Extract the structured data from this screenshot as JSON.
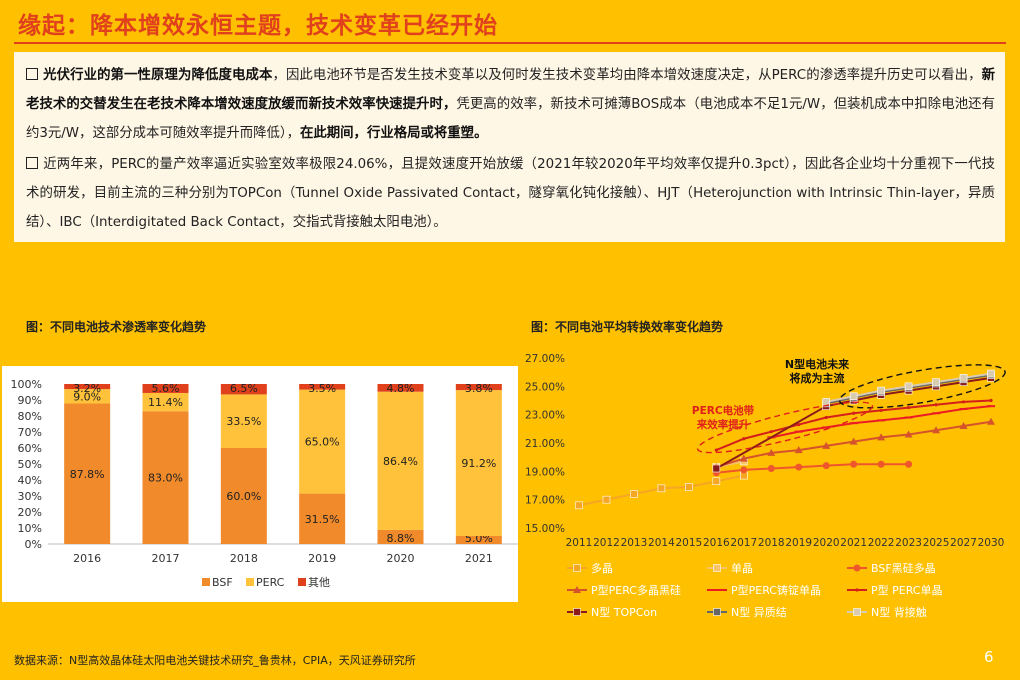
{
  "header": {
    "title": "缘起：降本增效永恒主题，技术变革已经开始"
  },
  "paragraphs": {
    "p1": [
      {
        "t": "光伏行业的第一性原理为降低度电成本",
        "b": true
      },
      {
        "t": "，因此电池环节是否发生技术变革以及何时发生技术变革均由降本增效速度决定，从PERC的渗透率提升历史可以看出，",
        "b": false
      },
      {
        "t": "新老技术的交替发生在老技术降本增效速度放缓而新技术效率快速提升时，",
        "b": true
      },
      {
        "t": "凭更高的效率，新技术可摊薄BOS成本（电池成本不足1元/W，但装机成本中扣除电池还有约3元/W，这部分成本可随效率提升而降低），",
        "b": false
      },
      {
        "t": "在此期间，行业格局或将重塑。",
        "b": true
      }
    ],
    "p2": [
      {
        "t": "近两年来，PERC的量产效率逼近实验室效率极限24.06%，且提效速度开始放缓（2021年较2020年平均效率仅提升0.3pct），因此各企业均十分重视下一代技术的研发，目前主流的三种分别为TOPCon（Tunnel Oxide Passivated Contact，隧穿氧化钝化接触）、HJT（Heterojunction with Intrinsic Thin-layer，异质结）、IBC（Interdigitated Back Contact，交指式背接触太阳电池）。",
        "b": false
      }
    ]
  },
  "chart_labels": {
    "left": "图：不同电池技术渗透率变化趋势",
    "right": "图：不同电池平均转换效率变化趋势"
  },
  "chart_data": [
    {
      "type": "bar",
      "stacked": true,
      "categories": [
        "2016",
        "2017",
        "2018",
        "2019",
        "2020",
        "2021"
      ],
      "series": [
        {
          "name": "BSF",
          "color": "#F08A2B",
          "values": [
            87.8,
            83.0,
            60.0,
            31.5,
            8.8,
            5.0
          ]
        },
        {
          "name": "PERC",
          "color": "#FFC23A",
          "values": [
            9.0,
            11.4,
            33.5,
            65.0,
            86.4,
            91.2
          ]
        },
        {
          "name": "其他",
          "color": "#E0401C",
          "values": [
            3.2,
            5.6,
            6.5,
            3.5,
            4.8,
            3.8
          ]
        }
      ],
      "ylim": [
        0,
        100
      ],
      "yticks": [
        "0%",
        "10%",
        "20%",
        "30%",
        "40%",
        "50%",
        "60%",
        "70%",
        "80%",
        "90%",
        "100%"
      ],
      "value_labels": [
        [
          "87.8%",
          "83.0%",
          "60.0%",
          "31.5%",
          "8.8%",
          "5.0%"
        ],
        [
          "9.0%",
          "11.4%",
          "33.5%",
          "65.0%",
          "86.4%",
          "91.2%"
        ],
        [
          "3.2%",
          "5.6%",
          "6.5%",
          "3.5%",
          "4.8%",
          "3.8%"
        ]
      ],
      "legend_position": "bottom"
    },
    {
      "type": "line",
      "x": [
        "2011",
        "2012",
        "2013",
        "2014",
        "2015",
        "2016",
        "2017",
        "2018",
        "2019",
        "2020",
        "2021",
        "2022",
        "2023",
        "2025",
        "2027",
        "2030"
      ],
      "ylim": [
        15,
        27
      ],
      "yticks": [
        "15.00%",
        "17.00%",
        "19.00%",
        "21.00%",
        "23.00%",
        "25.00%",
        "27.00%"
      ],
      "series": [
        {
          "name": "多晶",
          "color": "#F5A623",
          "marker": "square",
          "values": [
            16.6,
            17.0,
            17.4,
            17.8,
            17.9,
            18.3,
            18.7,
            null,
            null,
            null,
            null,
            null,
            null,
            null,
            null,
            null
          ]
        },
        {
          "name": "单晶",
          "color": "#F7C46B",
          "marker": "square",
          "values": [
            null,
            null,
            null,
            null,
            null,
            19.3,
            19.7,
            null,
            null,
            null,
            null,
            null,
            null,
            null,
            null,
            null
          ]
        },
        {
          "name": "BSF黑硅多晶",
          "color": "#F0562B",
          "marker": "circle",
          "values": [
            null,
            null,
            null,
            null,
            null,
            18.9,
            19.1,
            19.2,
            19.3,
            19.4,
            19.5,
            19.5,
            19.5,
            null,
            null,
            null
          ]
        },
        {
          "name": "P型PERC多晶黑硅",
          "color": "#D5522A",
          "marker": "triangle",
          "values": [
            null,
            null,
            null,
            null,
            null,
            19.3,
            19.9,
            20.3,
            20.5,
            20.8,
            21.1,
            21.4,
            21.6,
            21.9,
            22.2,
            22.5
          ]
        },
        {
          "name": "P型PERC铸锭单晶",
          "color": "#EB1C24",
          "marker": "dash",
          "values": [
            null,
            null,
            null,
            null,
            null,
            null,
            null,
            21.4,
            21.8,
            22.1,
            22.4,
            22.6,
            22.8,
            23.1,
            23.4,
            23.6
          ]
        },
        {
          "name": "P型 PERC单晶",
          "color": "#D4201B",
          "marker": "dot",
          "values": [
            null,
            null,
            null,
            null,
            null,
            20.5,
            21.3,
            21.8,
            22.3,
            22.8,
            23.1,
            23.3,
            23.5,
            23.7,
            23.9,
            24.0
          ]
        },
        {
          "name": "N型 TOPCon",
          "color": "#8B1A1A",
          "marker": "square",
          "values": [
            null,
            null,
            null,
            null,
            null,
            19.2,
            null,
            null,
            null,
            23.6,
            24.0,
            24.4,
            24.7,
            25.0,
            25.3,
            25.6
          ]
        },
        {
          "name": "N型 异质结",
          "color": "#666666",
          "marker": "square",
          "values": [
            null,
            null,
            null,
            null,
            null,
            null,
            null,
            null,
            null,
            23.8,
            24.2,
            24.6,
            24.9,
            25.2,
            25.5,
            25.8
          ]
        },
        {
          "name": "N型 背接触",
          "color": "#D9CBB0",
          "marker": "square",
          "values": [
            null,
            null,
            null,
            null,
            null,
            null,
            null,
            null,
            null,
            23.9,
            24.3,
            24.7,
            25.0,
            25.3,
            25.6,
            25.9
          ]
        }
      ],
      "annotations": [
        {
          "text": "N型电池未来将成为主流",
          "lines": [
            "N型电池未来",
            "将成为主流"
          ],
          "color": "#111111"
        },
        {
          "text": "PERC电池带来效率提升",
          "lines": [
            "PERC电池带",
            "来效率提升"
          ],
          "color": "#E0201B"
        }
      ],
      "legend_position": "bottom"
    }
  ],
  "footer": {
    "source": "数据来源：N型高效晶体硅太阳电池关键技术研究_鲁贵林，CPIA，天风证券研究所",
    "page": "6"
  }
}
